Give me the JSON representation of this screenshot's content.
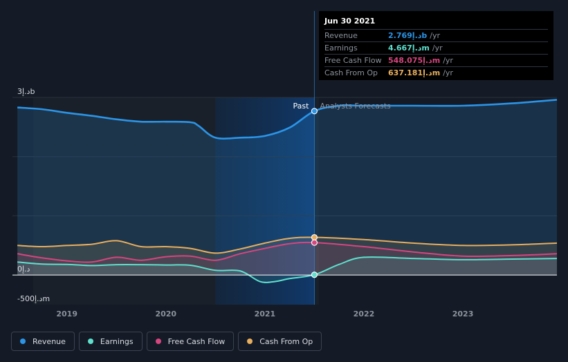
{
  "tooltip": {
    "date": "Jun 30 2021",
    "rows": [
      {
        "label": "Revenue",
        "value": "2.769د.إb",
        "unit": "/yr",
        "color": "#2b95e8"
      },
      {
        "label": "Earnings",
        "value": "4.667د.إm",
        "unit": "/yr",
        "color": "#5fe0cd"
      },
      {
        "label": "Free Cash Flow",
        "value": "548.075د.إm",
        "unit": "/yr",
        "color": "#d6457e"
      },
      {
        "label": "Cash From Op",
        "value": "637.181د.إm",
        "unit": "/yr",
        "color": "#e8ae5e"
      }
    ]
  },
  "legend": [
    {
      "label": "Revenue",
      "color": "#2b95e8"
    },
    {
      "label": "Earnings",
      "color": "#5fe0cd"
    },
    {
      "label": "Free Cash Flow",
      "color": "#d6457e"
    },
    {
      "label": "Cash From Op",
      "color": "#e8ae5e"
    }
  ],
  "chart_data": {
    "type": "area",
    "y_tick_labels": [
      {
        "value": 3000,
        "label": "3د.إb"
      },
      {
        "value": 0,
        "label": "0د.إ"
      },
      {
        "value": -500,
        "label": "-500د.إm"
      }
    ],
    "ylim": [
      -500,
      3000
    ],
    "xlim": [
      2018.45,
      2023.95
    ],
    "x_ticks": [
      2019,
      2020,
      2021,
      2022,
      2023
    ],
    "past_label": "Past",
    "forecast_label": "Analysts Forecasts",
    "divider_x": 2021.5,
    "highlight_start_x": 2020.5,
    "series": [
      {
        "name": "Revenue",
        "color": "#2b95e8",
        "x": [
          2018.5,
          2018.75,
          2019.0,
          2019.25,
          2019.5,
          2019.75,
          2020.0,
          2020.25,
          2020.33,
          2020.5,
          2020.75,
          2021.0,
          2021.25,
          2021.5,
          2021.75,
          2022.0,
          2022.5,
          2023.0,
          2023.5,
          2023.95
        ],
        "y": [
          2830,
          2800,
          2740,
          2690,
          2630,
          2590,
          2590,
          2580,
          2520,
          2320,
          2320,
          2350,
          2490,
          2769,
          2860,
          2860,
          2860,
          2860,
          2900,
          2960
        ]
      },
      {
        "name": "Cash From Op",
        "color": "#e8ae5e",
        "x": [
          2018.5,
          2018.75,
          2019.0,
          2019.25,
          2019.5,
          2019.75,
          2020.0,
          2020.25,
          2020.5,
          2020.75,
          2021.0,
          2021.25,
          2021.5,
          2022.0,
          2022.5,
          2023.0,
          2023.5,
          2023.95
        ],
        "y": [
          500,
          480,
          500,
          520,
          580,
          480,
          480,
          450,
          370,
          440,
          540,
          620,
          637,
          600,
          540,
          500,
          510,
          540
        ]
      },
      {
        "name": "Free Cash Flow",
        "color": "#d6457e",
        "x": [
          2018.5,
          2018.75,
          2019.0,
          2019.25,
          2019.5,
          2019.75,
          2020.0,
          2020.25,
          2020.5,
          2020.75,
          2021.0,
          2021.25,
          2021.5,
          2022.0,
          2022.5,
          2023.0,
          2023.5,
          2023.95
        ],
        "y": [
          360,
          290,
          240,
          220,
          300,
          250,
          310,
          320,
          250,
          360,
          450,
          530,
          548,
          480,
          390,
          320,
          330,
          360
        ]
      },
      {
        "name": "Earnings",
        "color": "#5fe0cd",
        "x": [
          2018.5,
          2018.75,
          2019.0,
          2019.25,
          2019.5,
          2019.75,
          2020.0,
          2020.25,
          2020.5,
          2020.75,
          2020.95,
          2021.1,
          2021.25,
          2021.5,
          2021.75,
          2022.0,
          2022.5,
          2023.0,
          2023.5,
          2023.95
        ],
        "y": [
          220,
          185,
          180,
          160,
          175,
          175,
          170,
          165,
          80,
          70,
          -110,
          -110,
          -60,
          5,
          180,
          300,
          280,
          260,
          270,
          280
        ]
      }
    ]
  }
}
